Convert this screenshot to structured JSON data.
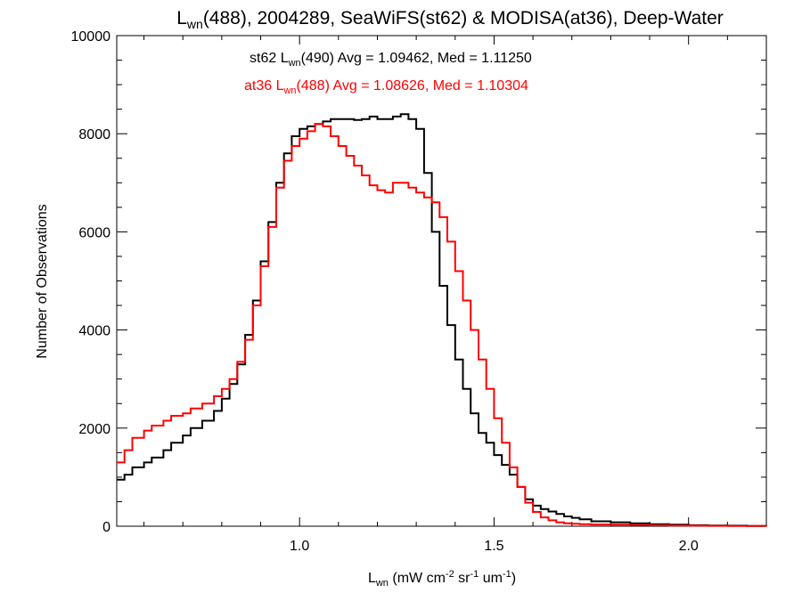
{
  "chart_data": {
    "type": "line",
    "step": true,
    "title": {
      "base": "L",
      "sub": "wn",
      "rest": "(488), 2004289, SeaWiFS(st62) & MODISA(at36), Deep-Water"
    },
    "xlabel": {
      "base": "L",
      "sub": "wn",
      "rest": " (mW cm",
      "sup1": "-2",
      "mid": " sr",
      "sup2": "-1",
      "mid2": " um",
      "sup3": "-1",
      "end": ")"
    },
    "ylabel": "Number of Observations",
    "xlim": [
      0.53,
      2.2
    ],
    "ylim": [
      0,
      10000
    ],
    "x_ticks": [
      1.0,
      1.5,
      2.0
    ],
    "x_tick_labels": [
      "1.0",
      "1.5",
      "2.0"
    ],
    "y_ticks": [
      0,
      2000,
      4000,
      6000,
      8000,
      10000
    ],
    "y_tick_labels": [
      "0",
      "2000",
      "4000",
      "6000",
      "8000",
      "10000"
    ],
    "grid": false,
    "annotations": [
      {
        "color": "#000000",
        "pre": "st62 L",
        "sub": "wn",
        "post": "(490) Avg = 1.09462, Med = 1.11250"
      },
      {
        "color": "#ff0000",
        "pre": "at36 L",
        "sub": "wn",
        "post": "(488) Avg = 1.08626, Med = 1.10304"
      }
    ],
    "series": [
      {
        "color": "#000000",
        "x": [
          0.53,
          0.55,
          0.57,
          0.6,
          0.62,
          0.65,
          0.67,
          0.7,
          0.72,
          0.75,
          0.78,
          0.8,
          0.82,
          0.84,
          0.86,
          0.88,
          0.9,
          0.92,
          0.94,
          0.96,
          0.98,
          1.0,
          1.02,
          1.04,
          1.06,
          1.08,
          1.1,
          1.12,
          1.14,
          1.16,
          1.18,
          1.2,
          1.22,
          1.24,
          1.26,
          1.28,
          1.3,
          1.32,
          1.34,
          1.36,
          1.38,
          1.4,
          1.42,
          1.44,
          1.46,
          1.48,
          1.5,
          1.52,
          1.54,
          1.56,
          1.58,
          1.6,
          1.62,
          1.64,
          1.66,
          1.68,
          1.7,
          1.72,
          1.75,
          1.8,
          1.85,
          1.9,
          1.95,
          2.0,
          2.05,
          2.1,
          2.15,
          2.2
        ],
        "y": [
          950,
          1050,
          1200,
          1300,
          1400,
          1550,
          1700,
          1850,
          2000,
          2150,
          2350,
          2600,
          2900,
          3300,
          3900,
          4600,
          5400,
          6200,
          7000,
          7600,
          7950,
          8100,
          8150,
          8200,
          8250,
          8300,
          8300,
          8300,
          8280,
          8300,
          8350,
          8300,
          8300,
          8350,
          8400,
          8300,
          8100,
          7200,
          6000,
          4900,
          4100,
          3400,
          2800,
          2300,
          1900,
          1700,
          1450,
          1250,
          1050,
          800,
          550,
          420,
          350,
          300,
          250,
          200,
          170,
          140,
          100,
          80,
          60,
          40,
          30,
          20,
          15,
          10,
          5,
          0
        ]
      },
      {
        "color": "#ff0000",
        "x": [
          0.53,
          0.55,
          0.57,
          0.6,
          0.62,
          0.65,
          0.67,
          0.7,
          0.72,
          0.75,
          0.78,
          0.8,
          0.82,
          0.84,
          0.86,
          0.88,
          0.9,
          0.92,
          0.94,
          0.96,
          0.98,
          1.0,
          1.02,
          1.04,
          1.06,
          1.08,
          1.1,
          1.12,
          1.14,
          1.16,
          1.18,
          1.2,
          1.22,
          1.24,
          1.26,
          1.28,
          1.3,
          1.32,
          1.34,
          1.36,
          1.38,
          1.4,
          1.42,
          1.44,
          1.46,
          1.48,
          1.5,
          1.52,
          1.54,
          1.56,
          1.58,
          1.6,
          1.62,
          1.64,
          1.66,
          1.68,
          1.7,
          1.72,
          1.75,
          1.8,
          1.85,
          1.9,
          1.95,
          2.0,
          2.05,
          2.1,
          2.15,
          2.2
        ],
        "y": [
          1300,
          1550,
          1800,
          1950,
          2050,
          2150,
          2250,
          2300,
          2400,
          2500,
          2650,
          2800,
          3000,
          3350,
          3800,
          4500,
          5300,
          6100,
          6900,
          7450,
          7750,
          7900,
          8050,
          8200,
          8150,
          7950,
          7750,
          7550,
          7350,
          7150,
          6950,
          6850,
          6800,
          7000,
          7000,
          6900,
          6800,
          6700,
          6600,
          6300,
          5800,
          5200,
          4600,
          4000,
          3400,
          2800,
          2200,
          1700,
          1200,
          800,
          480,
          290,
          180,
          120,
          80,
          60,
          50,
          40,
          35,
          30,
          25,
          20,
          15,
          10,
          8,
          5,
          3,
          0
        ]
      }
    ]
  }
}
